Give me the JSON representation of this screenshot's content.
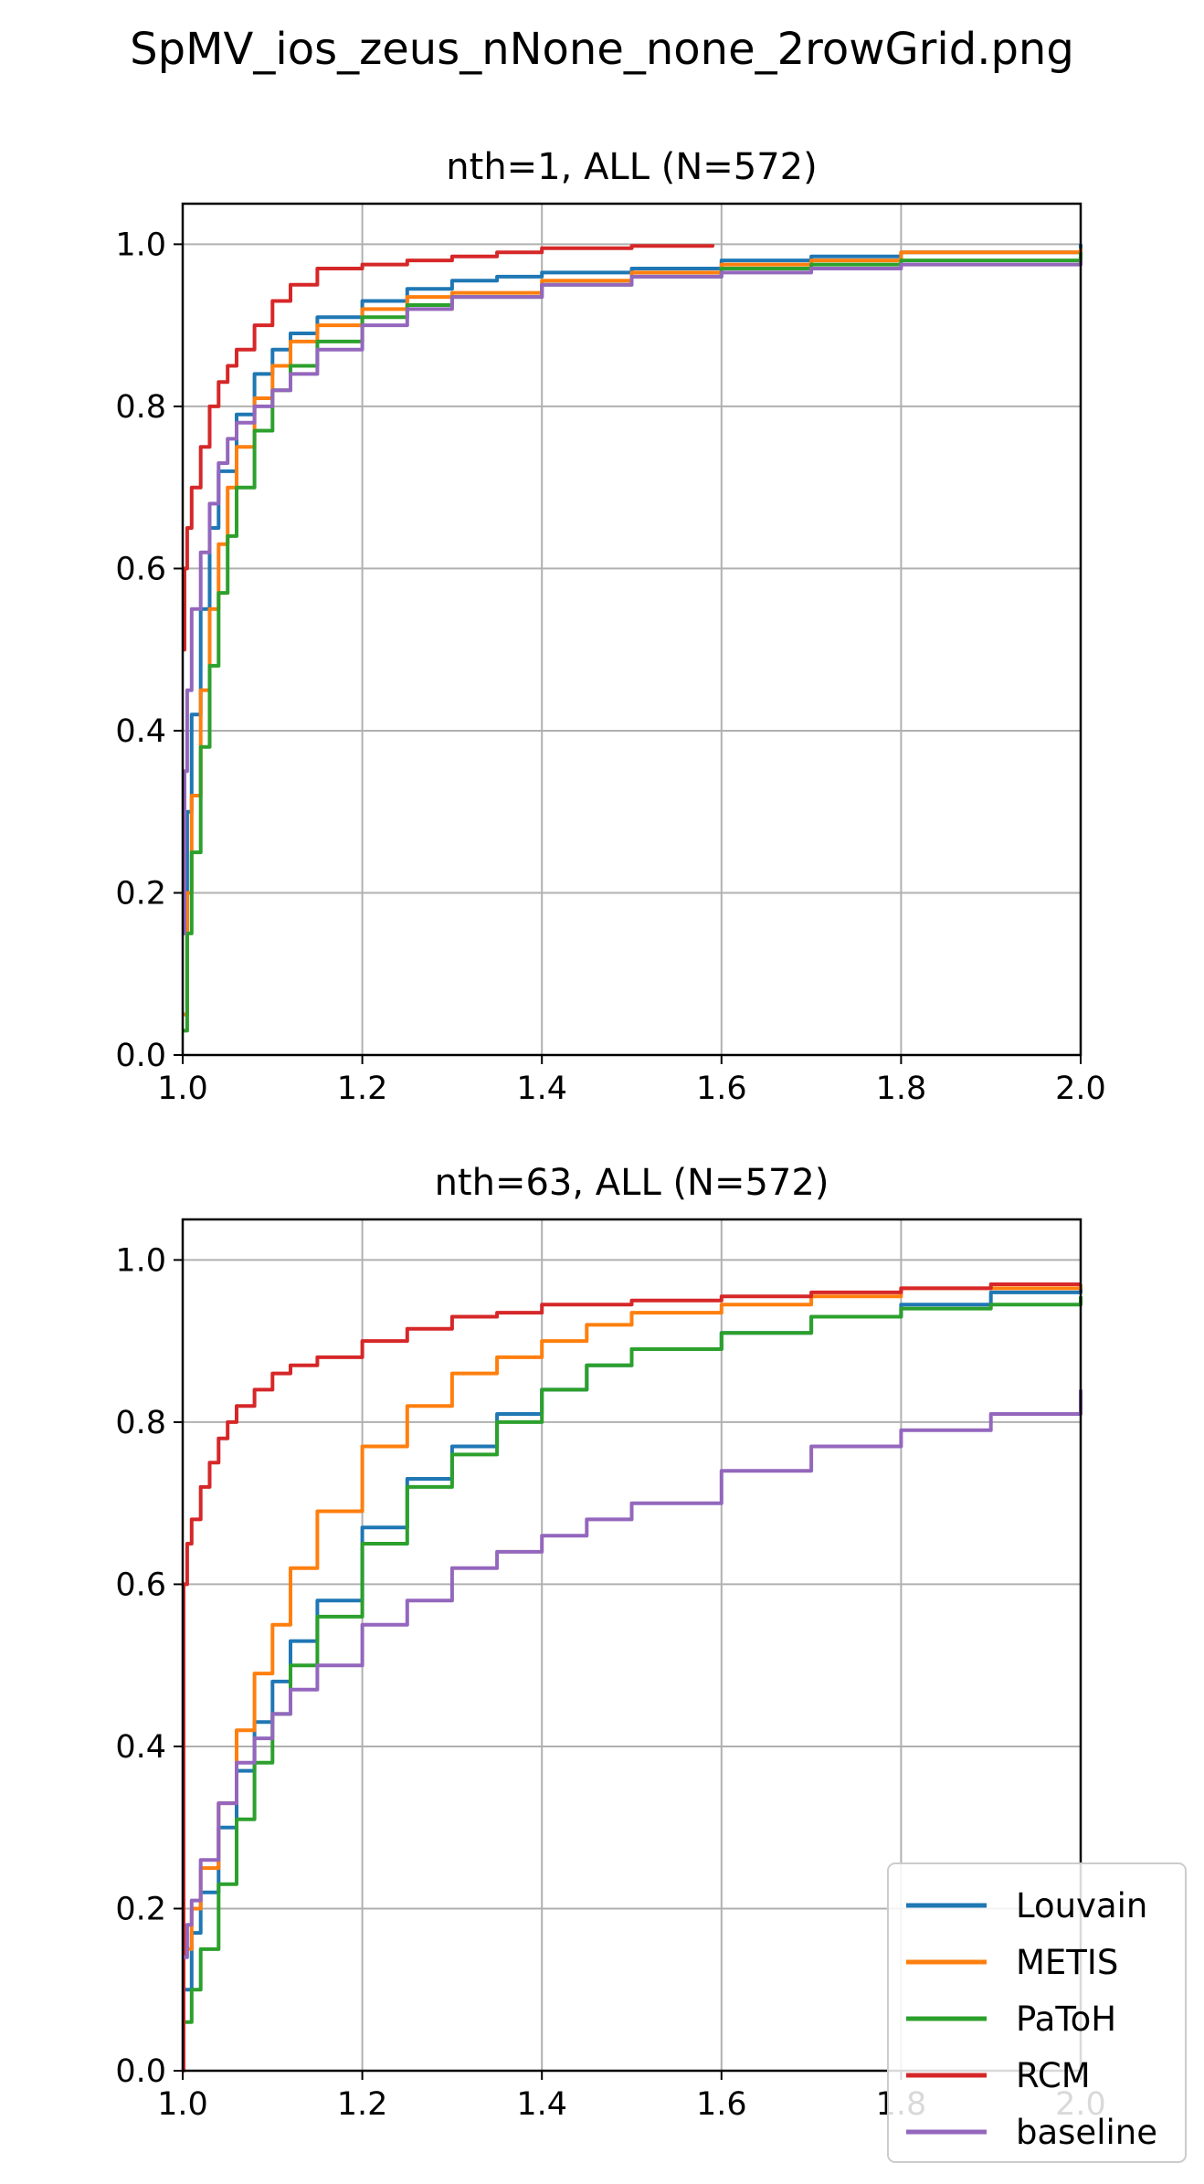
{
  "figure_title": "SpMV_ios_zeus_nNone_none_2rowGrid.png",
  "colors": {
    "Louvain": "#1f77b4",
    "METIS": "#ff7f0e",
    "PaToH": "#2ca02c",
    "RCM": "#d62728",
    "baseline": "#9467bd",
    "grid": "#b0b0b0",
    "axis": "#000000"
  },
  "legend": {
    "placement": "lower-right",
    "entries": [
      "Louvain",
      "METIS",
      "PaToH",
      "RCM",
      "baseline"
    ]
  },
  "chart_data": [
    {
      "type": "line",
      "title": "nth=1, ALL (N=572)",
      "xlabel": "",
      "ylabel": "",
      "xlim": [
        1.0,
        2.0
      ],
      "ylim": [
        0.0,
        1.05
      ],
      "xticks": [
        "1.0",
        "1.2",
        "1.4",
        "1.6",
        "1.8",
        "2.0"
      ],
      "yticks": [
        "0.0",
        "0.2",
        "0.4",
        "0.6",
        "0.8",
        "1.0"
      ],
      "grid": true,
      "series": [
        {
          "name": "Louvain",
          "x": [
            1.0,
            1.005,
            1.01,
            1.02,
            1.03,
            1.04,
            1.06,
            1.08,
            1.1,
            1.12,
            1.15,
            1.2,
            1.25,
            1.3,
            1.35,
            1.4,
            1.5,
            1.6,
            1.7,
            1.8,
            2.0
          ],
          "y": [
            0.05,
            0.3,
            0.42,
            0.55,
            0.65,
            0.72,
            0.79,
            0.84,
            0.87,
            0.89,
            0.91,
            0.93,
            0.945,
            0.955,
            0.96,
            0.965,
            0.97,
            0.98,
            0.985,
            0.99,
            1.0
          ]
        },
        {
          "name": "METIS",
          "x": [
            1.0,
            1.005,
            1.01,
            1.02,
            1.03,
            1.04,
            1.05,
            1.06,
            1.08,
            1.1,
            1.12,
            1.15,
            1.2,
            1.25,
            1.3,
            1.4,
            1.5,
            1.6,
            1.7,
            1.8,
            2.0
          ],
          "y": [
            0.05,
            0.2,
            0.32,
            0.45,
            0.55,
            0.63,
            0.7,
            0.75,
            0.81,
            0.85,
            0.88,
            0.9,
            0.92,
            0.935,
            0.94,
            0.955,
            0.965,
            0.975,
            0.98,
            0.99,
            0.995
          ]
        },
        {
          "name": "PaToH",
          "x": [
            1.0,
            1.005,
            1.01,
            1.02,
            1.03,
            1.04,
            1.05,
            1.06,
            1.08,
            1.1,
            1.12,
            1.15,
            1.2,
            1.25,
            1.3,
            1.4,
            1.5,
            1.6,
            1.7,
            1.8,
            2.0
          ],
          "y": [
            0.03,
            0.15,
            0.25,
            0.38,
            0.48,
            0.57,
            0.64,
            0.7,
            0.77,
            0.82,
            0.85,
            0.88,
            0.91,
            0.925,
            0.935,
            0.95,
            0.96,
            0.97,
            0.975,
            0.98,
            0.99
          ]
        },
        {
          "name": "RCM",
          "x": [
            1.0,
            1.002,
            1.005,
            1.01,
            1.02,
            1.03,
            1.04,
            1.05,
            1.06,
            1.08,
            1.1,
            1.12,
            1.15,
            1.2,
            1.25,
            1.3,
            1.35,
            1.4,
            1.5,
            1.59
          ],
          "y": [
            0.5,
            0.6,
            0.65,
            0.7,
            0.75,
            0.8,
            0.83,
            0.85,
            0.87,
            0.9,
            0.93,
            0.95,
            0.97,
            0.975,
            0.98,
            0.985,
            0.99,
            0.995,
            0.998,
            1.0
          ]
        },
        {
          "name": "baseline",
          "x": [
            1.0,
            1.002,
            1.005,
            1.01,
            1.02,
            1.03,
            1.04,
            1.05,
            1.06,
            1.08,
            1.1,
            1.12,
            1.15,
            1.2,
            1.25,
            1.3,
            1.4,
            1.5,
            1.6,
            1.7,
            1.8,
            2.0
          ],
          "y": [
            0.15,
            0.35,
            0.45,
            0.55,
            0.62,
            0.68,
            0.73,
            0.76,
            0.78,
            0.8,
            0.82,
            0.84,
            0.87,
            0.9,
            0.92,
            0.935,
            0.95,
            0.96,
            0.965,
            0.97,
            0.975,
            0.98
          ]
        }
      ]
    },
    {
      "type": "line",
      "title": "nth=63, ALL (N=572)",
      "xlabel": "",
      "ylabel": "",
      "xlim": [
        1.0,
        2.0
      ],
      "ylim": [
        0.0,
        1.05
      ],
      "xticks": [
        "1.0",
        "1.2",
        "1.4",
        "1.6",
        "1.8",
        "2.0"
      ],
      "yticks": [
        "0.0",
        "0.2",
        "0.4",
        "0.6",
        "0.8",
        "1.0"
      ],
      "grid": true,
      "series": [
        {
          "name": "Louvain",
          "x": [
            1.0,
            1.01,
            1.02,
            1.04,
            1.06,
            1.08,
            1.1,
            1.12,
            1.15,
            1.2,
            1.25,
            1.3,
            1.35,
            1.4,
            1.45,
            1.5,
            1.6,
            1.7,
            1.8,
            1.9,
            2.0
          ],
          "y": [
            0.1,
            0.17,
            0.22,
            0.3,
            0.37,
            0.43,
            0.48,
            0.53,
            0.58,
            0.67,
            0.73,
            0.77,
            0.81,
            0.84,
            0.87,
            0.89,
            0.91,
            0.93,
            0.945,
            0.96,
            0.965
          ]
        },
        {
          "name": "METIS",
          "x": [
            1.0,
            1.01,
            1.02,
            1.04,
            1.06,
            1.08,
            1.1,
            1.12,
            1.15,
            1.2,
            1.25,
            1.3,
            1.35,
            1.4,
            1.45,
            1.5,
            1.6,
            1.7,
            1.8,
            2.0
          ],
          "y": [
            0.15,
            0.2,
            0.25,
            0.33,
            0.42,
            0.49,
            0.55,
            0.62,
            0.69,
            0.77,
            0.82,
            0.86,
            0.88,
            0.9,
            0.92,
            0.935,
            0.945,
            0.955,
            0.965,
            0.97
          ]
        },
        {
          "name": "PaToH",
          "x": [
            1.0,
            1.01,
            1.02,
            1.04,
            1.06,
            1.08,
            1.1,
            1.12,
            1.15,
            1.2,
            1.25,
            1.3,
            1.35,
            1.4,
            1.45,
            1.5,
            1.6,
            1.7,
            1.8,
            1.9,
            2.0
          ],
          "y": [
            0.06,
            0.1,
            0.15,
            0.23,
            0.31,
            0.38,
            0.44,
            0.5,
            0.56,
            0.65,
            0.72,
            0.76,
            0.8,
            0.84,
            0.87,
            0.89,
            0.91,
            0.93,
            0.94,
            0.945,
            0.955
          ]
        },
        {
          "name": "RCM",
          "x": [
            1.0,
            1.001,
            1.005,
            1.01,
            1.02,
            1.03,
            1.04,
            1.05,
            1.06,
            1.08,
            1.1,
            1.12,
            1.15,
            1.2,
            1.25,
            1.3,
            1.35,
            1.4,
            1.5,
            1.6,
            1.7,
            1.8,
            1.9,
            2.0
          ],
          "y": [
            0.0,
            0.6,
            0.65,
            0.68,
            0.72,
            0.75,
            0.78,
            0.8,
            0.82,
            0.84,
            0.86,
            0.87,
            0.88,
            0.9,
            0.915,
            0.93,
            0.935,
            0.945,
            0.95,
            0.955,
            0.96,
            0.965,
            0.97,
            0.97
          ]
        },
        {
          "name": "baseline",
          "x": [
            1.0,
            1.005,
            1.01,
            1.02,
            1.04,
            1.06,
            1.08,
            1.1,
            1.12,
            1.15,
            1.2,
            1.25,
            1.3,
            1.35,
            1.4,
            1.45,
            1.5,
            1.6,
            1.7,
            1.8,
            1.9,
            2.0
          ],
          "y": [
            0.14,
            0.18,
            0.21,
            0.26,
            0.33,
            0.38,
            0.41,
            0.44,
            0.47,
            0.5,
            0.55,
            0.58,
            0.62,
            0.64,
            0.66,
            0.68,
            0.7,
            0.74,
            0.77,
            0.79,
            0.81,
            0.84
          ]
        }
      ]
    }
  ]
}
